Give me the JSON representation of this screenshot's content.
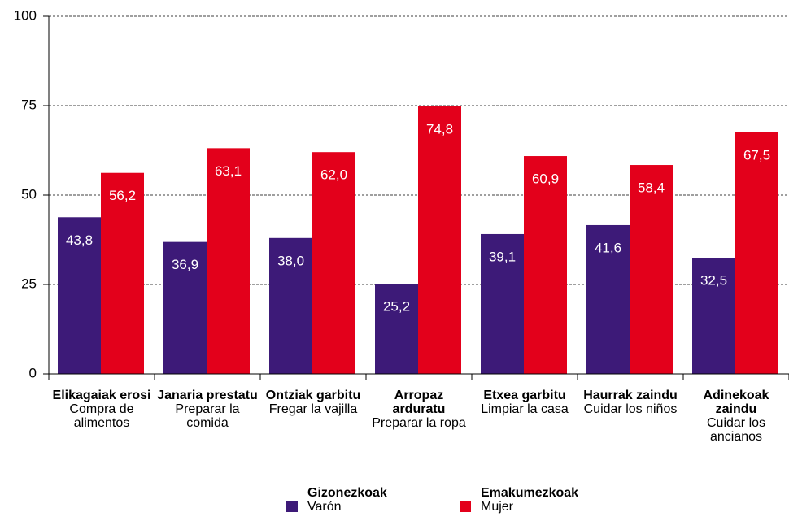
{
  "chart_data": {
    "type": "bar",
    "categories": [
      "Elikagaiak erosi",
      "Janaria prestatu",
      "Ontziak garbitu",
      "Arropaz arduratu",
      "Etxea garbitu",
      "Haurrak zaindu",
      "Adinekoak zaindu"
    ],
    "categories_es": [
      "Compra de alimentos",
      "Preparar la comida",
      "Fregar la vajilla",
      "Preparar la ropa",
      "Limpiar la casa",
      "Cuidar los niños",
      "Cuidar los ancianos"
    ],
    "series": [
      {
        "name": "Gizonezkoak",
        "name_es": "Varón",
        "color": "#3d1a78",
        "values": [
          43.8,
          36.9,
          38.0,
          25.2,
          39.1,
          41.6,
          32.5
        ],
        "value_labels": [
          "43,8",
          "36,9",
          "38,0",
          "25,2",
          "39,1",
          "41,6",
          "32,5"
        ]
      },
      {
        "name": "Emakumezkoak",
        "name_es": "Mujer",
        "color": "#e3001b",
        "values": [
          56.2,
          63.1,
          62.0,
          74.8,
          60.9,
          58.4,
          67.5
        ],
        "value_labels": [
          "56,2",
          "63,1",
          "62,0",
          "74,8",
          "60,9",
          "58,4",
          "67,5"
        ]
      }
    ],
    "ylim": [
      0,
      100
    ],
    "yticks": [
      0,
      25,
      50,
      75,
      100
    ],
    "grid": true
  }
}
